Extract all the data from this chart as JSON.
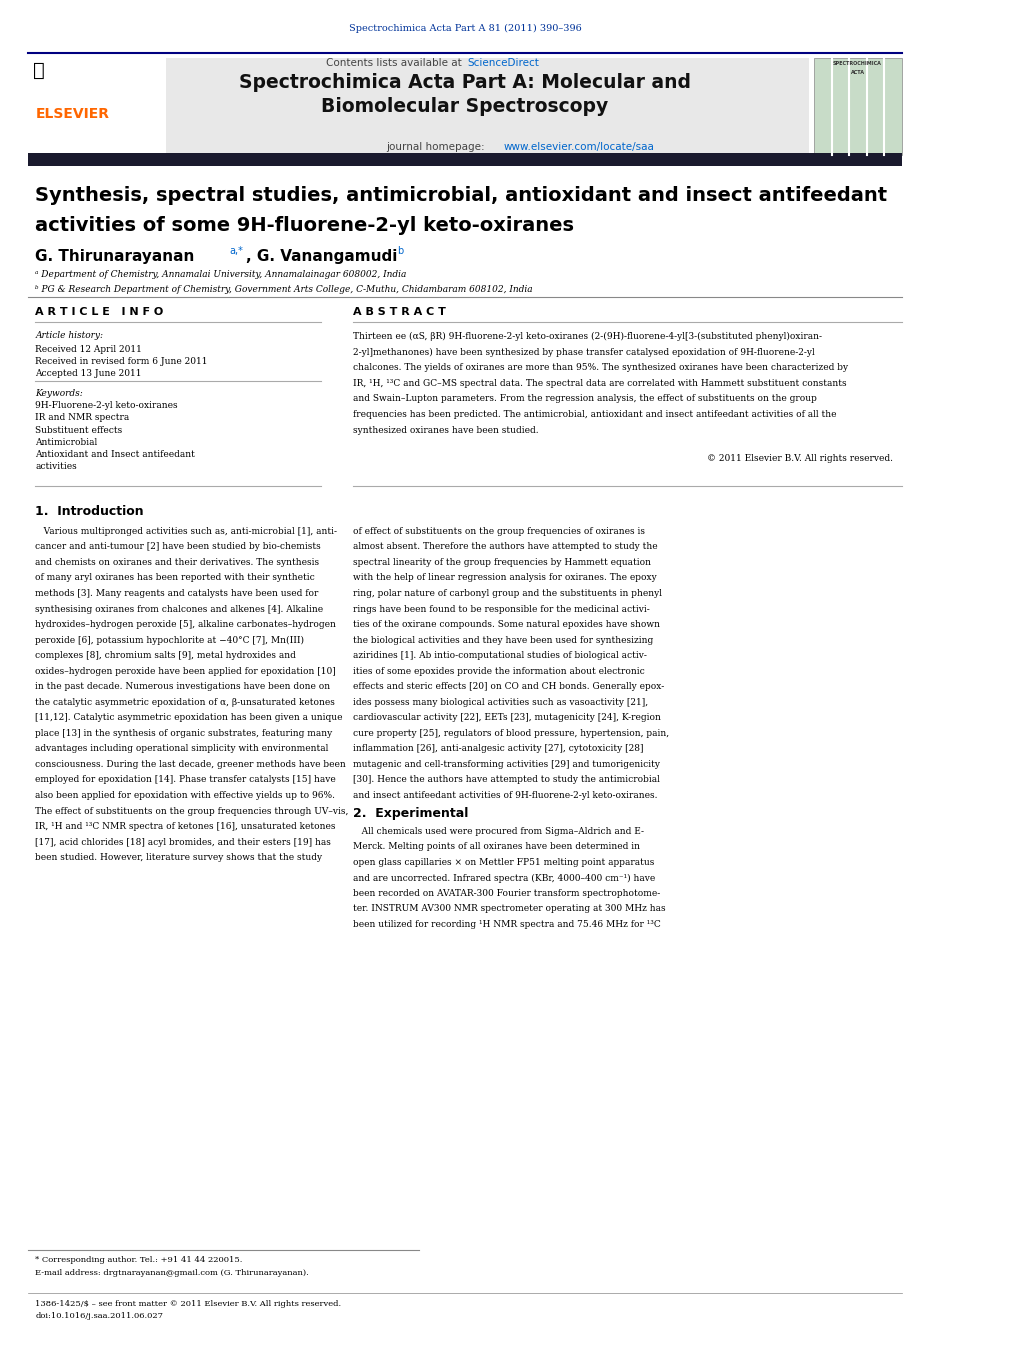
{
  "page_width": 10.21,
  "page_height": 13.51,
  "bg_color": "#ffffff",
  "top_journal_ref": "Spectrochimica Acta Part A 81 (2011) 390–396",
  "journal_name_line1": "Spectrochimica Acta Part A: Molecular and",
  "journal_name_line2": "Biomolecular Spectroscopy",
  "journal_homepage": "journal homepage: www.elsevier.com/locate/saa",
  "contents_available": "Contents lists available at ScienceDirect",
  "paper_title_line1": "Synthesis, spectral studies, antimicrobial, antioxidant and insect antifeedant",
  "paper_title_line2": "activities of some 9H-fluorene-2-yl keto-oxiranes",
  "author1": "G. Thirunarayanan",
  "author1_sup": "a,*",
  "author2": ", G. Vanangamudi",
  "author2_sup": "b",
  "affil_a": "ᵃ Department of Chemistry, Annamalai University, Annamalainagar 608002, India",
  "affil_b": "ᵇ PG & Research Department of Chemistry, Government Arts College, C-Muthu, Chidambaram 608102, India",
  "article_info_title": "A R T I C L E   I N F O",
  "abstract_title": "A B S T R A C T",
  "article_history_label": "Article history:",
  "received1": "Received 12 April 2011",
  "received2": "Received in revised form 6 June 2011",
  "accepted": "Accepted 13 June 2011",
  "keywords_label": "Keywords:",
  "keyword1": "9H-Fluorene-2-yl keto-oxiranes",
  "keyword2": "IR and NMR spectra",
  "keyword3": "Substituent effects",
  "keyword4": "Antimicrobial",
  "keyword5": "Antioxidant and Insect antifeedant",
  "keyword6": "activities",
  "copyright": "© 2011 Elsevier B.V. All rights reserved.",
  "section1_title": "1.  Introduction",
  "section2_title": "2.  Experimental",
  "footnote1": "* Corresponding author. Tel.: +91 41 44 220015.",
  "footnote2": "E-mail address: drgtnarayanan@gmail.com (G. Thirunarayanan).",
  "footer1": "1386-1425/$ – see front matter © 2011 Elsevier B.V. All rights reserved.",
  "footer2": "doi:10.1016/j.saa.2011.06.027",
  "header_blue": "#003399",
  "link_color": "#0066cc",
  "elsevier_orange": "#ff6600",
  "header_bg": "#e8e8e8",
  "journal_cover_bg": "#c8dcc8",
  "abstract_lines": [
    "Thirteen ee (αS, βR) 9H-fluorene-2-yl keto-oxiranes (2-(9H)-fluorene-4-yl[3-(substituted phenyl)oxiran-",
    "2-yl]methanones) have been synthesized by phase transfer catalysed epoxidation of 9H-fluorene-2-yl",
    "chalcones. The yields of oxiranes are more than 95%. The synthesized oxiranes have been characterized by",
    "IR, ¹H, ¹³C and GC–MS spectral data. The spectral data are correlated with Hammett substituent constants",
    "and Swain–Lupton parameters. From the regression analysis, the effect of substituents on the group",
    "frequencies has been predicted. The antimicrobial, antioxidant and insect antifeedant activities of all the",
    "synthesized oxiranes have been studied."
  ],
  "intro_left_lines": [
    "   Various multipronged activities such as, anti-microbial [1], anti-",
    "cancer and anti-tumour [2] have been studied by bio-chemists",
    "and chemists on oxiranes and their derivatives. The synthesis",
    "of many aryl oxiranes has been reported with their synthetic",
    "methods [3]. Many reagents and catalysts have been used for",
    "synthesising oxiranes from chalcones and alkenes [4]. Alkaline",
    "hydroxides–hydrogen peroxide [5], alkaline carbonates–hydrogen",
    "peroxide [6], potassium hypochlorite at −40°C [7], Mn(III)",
    "complexes [8], chromium salts [9], metal hydroxides and",
    "oxides–hydrogen peroxide have been applied for epoxidation [10]",
    "in the past decade. Numerous investigations have been done on",
    "the catalytic asymmetric epoxidation of α, β-unsaturated ketones",
    "[11,12]. Catalytic asymmetric epoxidation has been given a unique",
    "place [13] in the synthesis of organic substrates, featuring many",
    "advantages including operational simplicity with environmental",
    "consciousness. During the last decade, greener methods have been",
    "employed for epoxidation [14]. Phase transfer catalysts [15] have",
    "also been applied for epoxidation with effective yields up to 96%.",
    "The effect of substituents on the group frequencies through UV–vis,",
    "IR, ¹H and ¹³C NMR spectra of ketones [16], unsaturated ketones",
    "[17], acid chlorides [18] acyl bromides, and their esters [19] has",
    "been studied. However, literature survey shows that the study"
  ],
  "intro_right_lines": [
    "of effect of substituents on the group frequencies of oxiranes is",
    "almost absent. Therefore the authors have attempted to study the",
    "spectral linearity of the group frequencies by Hammett equation",
    "with the help of linear regression analysis for oxiranes. The epoxy",
    "ring, polar nature of carbonyl group and the substituents in phenyl",
    "rings have been found to be responsible for the medicinal activi-",
    "ties of the oxirane compounds. Some natural epoxides have shown",
    "the biological activities and they have been used for synthesizing",
    "aziridines [1]. Ab intio-computational studies of biological activ-",
    "ities of some epoxides provide the information about electronic",
    "effects and steric effects [20] on CO and CH bonds. Generally epox-",
    "ides possess many biological activities such as vasoactivity [21],",
    "cardiovascular activity [22], EETs [23], mutagenicity [24], K-region",
    "cure property [25], regulators of blood pressure, hypertension, pain,",
    "inflammation [26], anti-analgesic activity [27], cytotoxicity [28]",
    "mutagenic and cell-transforming activities [29] and tumorigenicity",
    "[30]. Hence the authors have attempted to study the antimicrobial",
    "and insect antifeedant activities of 9H-fluorene-2-yl keto-oxiranes."
  ],
  "exp_lines": [
    "   All chemicals used were procured from Sigma–Aldrich and E-",
    "Merck. Melting points of all oxiranes have been determined in",
    "open glass capillaries × on Mettler FP51 melting point apparatus",
    "and are uncorrected. Infrared spectra (KBr, 4000–400 cm⁻¹) have",
    "been recorded on AVATAR-300 Fourier transform spectrophotome-",
    "ter. INSTRUM AV300 NMR spectrometer operating at 300 MHz has",
    "been utilized for recording ¹H NMR spectra and 75.46 MHz for ¹³C"
  ]
}
